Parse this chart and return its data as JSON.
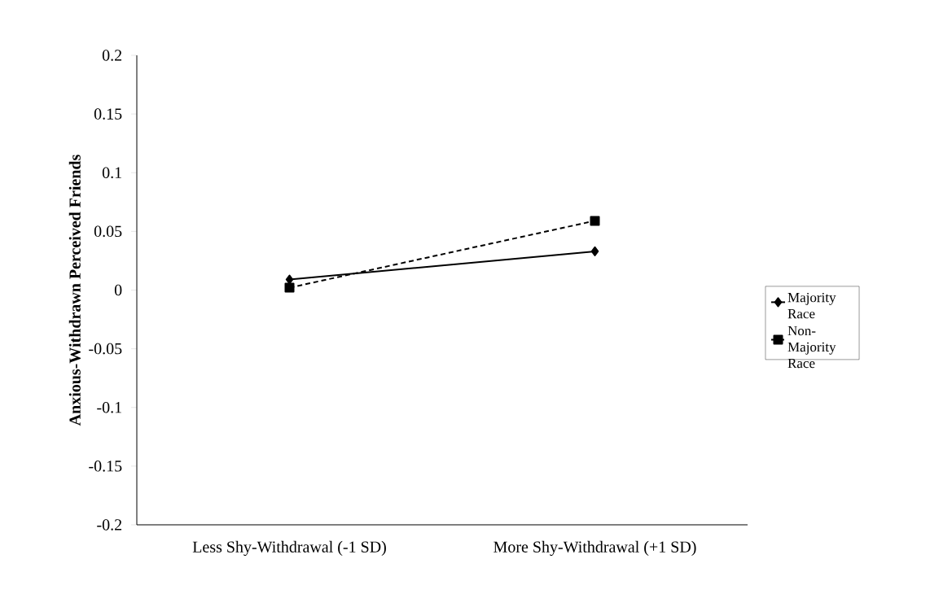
{
  "chart_data": {
    "type": "line",
    "ylabel": "Anxious-Withdrawn Perceived Friends",
    "categories": [
      "Less Shy-Withdrawal (-1 SD)",
      "More Shy-Withdrawal (+1 SD)"
    ],
    "series": [
      {
        "name": "Majority Race",
        "color": "#000000",
        "values": [
          0.009,
          0.033
        ],
        "marker": "diamond",
        "line_style": "solid"
      },
      {
        "name": "Non-Majority Race",
        "color": "#000000",
        "values": [
          0.002,
          0.059
        ],
        "marker": "square",
        "line_style": "dashed"
      }
    ],
    "ylim": [
      -0.2,
      0.2
    ],
    "yticks": [
      -0.2,
      -0.15,
      -0.1,
      -0.05,
      0,
      0.05,
      0.1,
      0.15,
      0.2
    ],
    "grid": false,
    "legend": "right"
  }
}
